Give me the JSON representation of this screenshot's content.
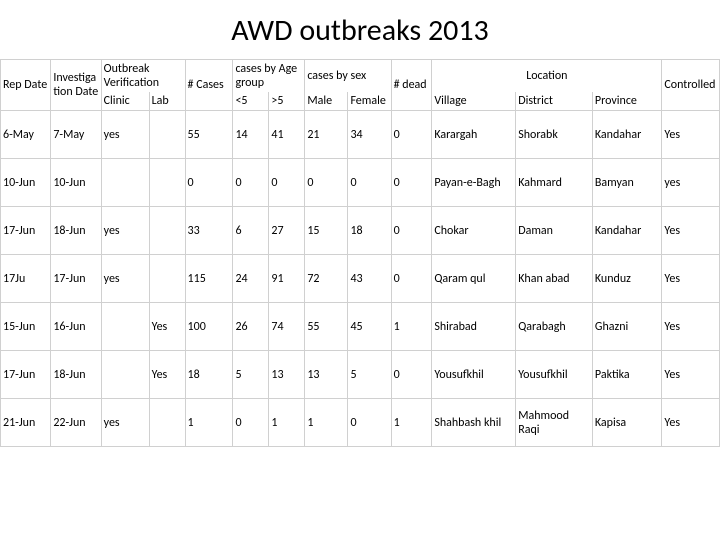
{
  "title": "AWD outbreaks 2013",
  "headers": {
    "rep_date": "Rep Date",
    "investigation_date": "Investigation Date",
    "outbreak_verification": "Outbreak Verification",
    "clinic": "Clinic",
    "lab": "Lab",
    "num_cases": "# Cases",
    "cases_by_age": "cases by Age group",
    "lt5": "<5",
    "gt5": ">5",
    "cases_by_sex": "cases by sex",
    "male": "Male",
    "female": "Female",
    "num_dead": "# dead",
    "location": "Location",
    "village": "Village",
    "district": "District",
    "province": "Province",
    "controlled": "Controlled"
  },
  "rows": [
    {
      "rep": "6-May",
      "inv": "7-May",
      "clinic": "yes",
      "lab": "",
      "cases": "55",
      "lt5": "14",
      "gt5": "41",
      "male": "21",
      "female": "34",
      "dead": "0",
      "village": "Karargah",
      "district": "Shorabk",
      "province": "Kandahar",
      "ctrl": "Yes"
    },
    {
      "rep": "10-Jun",
      "inv": "10-Jun",
      "clinic": "",
      "lab": "",
      "cases": "0",
      "lt5": "0",
      "gt5": "0",
      "male": "0",
      "female": "0",
      "dead": "0",
      "village": "Payan-e-Bagh",
      "district": "Kahmard",
      "province": "Bamyan",
      "ctrl": "yes"
    },
    {
      "rep": "17-Jun",
      "inv": "18-Jun",
      "clinic": "yes",
      "lab": "",
      "cases": "33",
      "lt5": "6",
      "gt5": "27",
      "male": "15",
      "female": "18",
      "dead": "0",
      "village": "Chokar",
      "district": "Daman",
      "province": "Kandahar",
      "ctrl": "Yes"
    },
    {
      "rep": "17Ju",
      "inv": "17-Jun",
      "clinic": "yes",
      "lab": "",
      "cases": "115",
      "lt5": "24",
      "gt5": "91",
      "male": "72",
      "female": "43",
      "dead": "0",
      "village": "Qaram qul",
      "district": "Khan abad",
      "province": "Kunduz",
      "ctrl": "Yes"
    },
    {
      "rep": "15-Jun",
      "inv": "16-Jun",
      "clinic": "",
      "lab": "Yes",
      "cases": "100",
      "lt5": "26",
      "gt5": "74",
      "male": "55",
      "female": "45",
      "dead": "1",
      "village": "Shirabad",
      "district": "Qarabagh",
      "province": "Ghazni",
      "ctrl": "Yes"
    },
    {
      "rep": "17-Jun",
      "inv": "18-Jun",
      "clinic": "",
      "lab": "Yes",
      "cases": "18",
      "lt5": "5",
      "gt5": "13",
      "male": "13",
      "female": "5",
      "dead": "0",
      "village": "Yousufkhil",
      "district": "Yousufkhil",
      "province": "Paktika",
      "ctrl": "Yes"
    },
    {
      "rep": "21-Jun",
      "inv": "22-Jun",
      "clinic": "yes",
      "lab": "",
      "cases": "1",
      "lt5": "0",
      "gt5": "1",
      "male": "1",
      "female": "0",
      "dead": "1",
      "village": "Shahbash khil",
      "district": "Mahmood Raqi",
      "province": "Kapisa",
      "ctrl": "Yes"
    }
  ],
  "style": {
    "background_color": "#ffffff",
    "text_color": "#000000",
    "border_color": "#d0d0d0",
    "title_fontsize": 30,
    "cell_fontsize": 12,
    "font_family": "Calibri"
  }
}
